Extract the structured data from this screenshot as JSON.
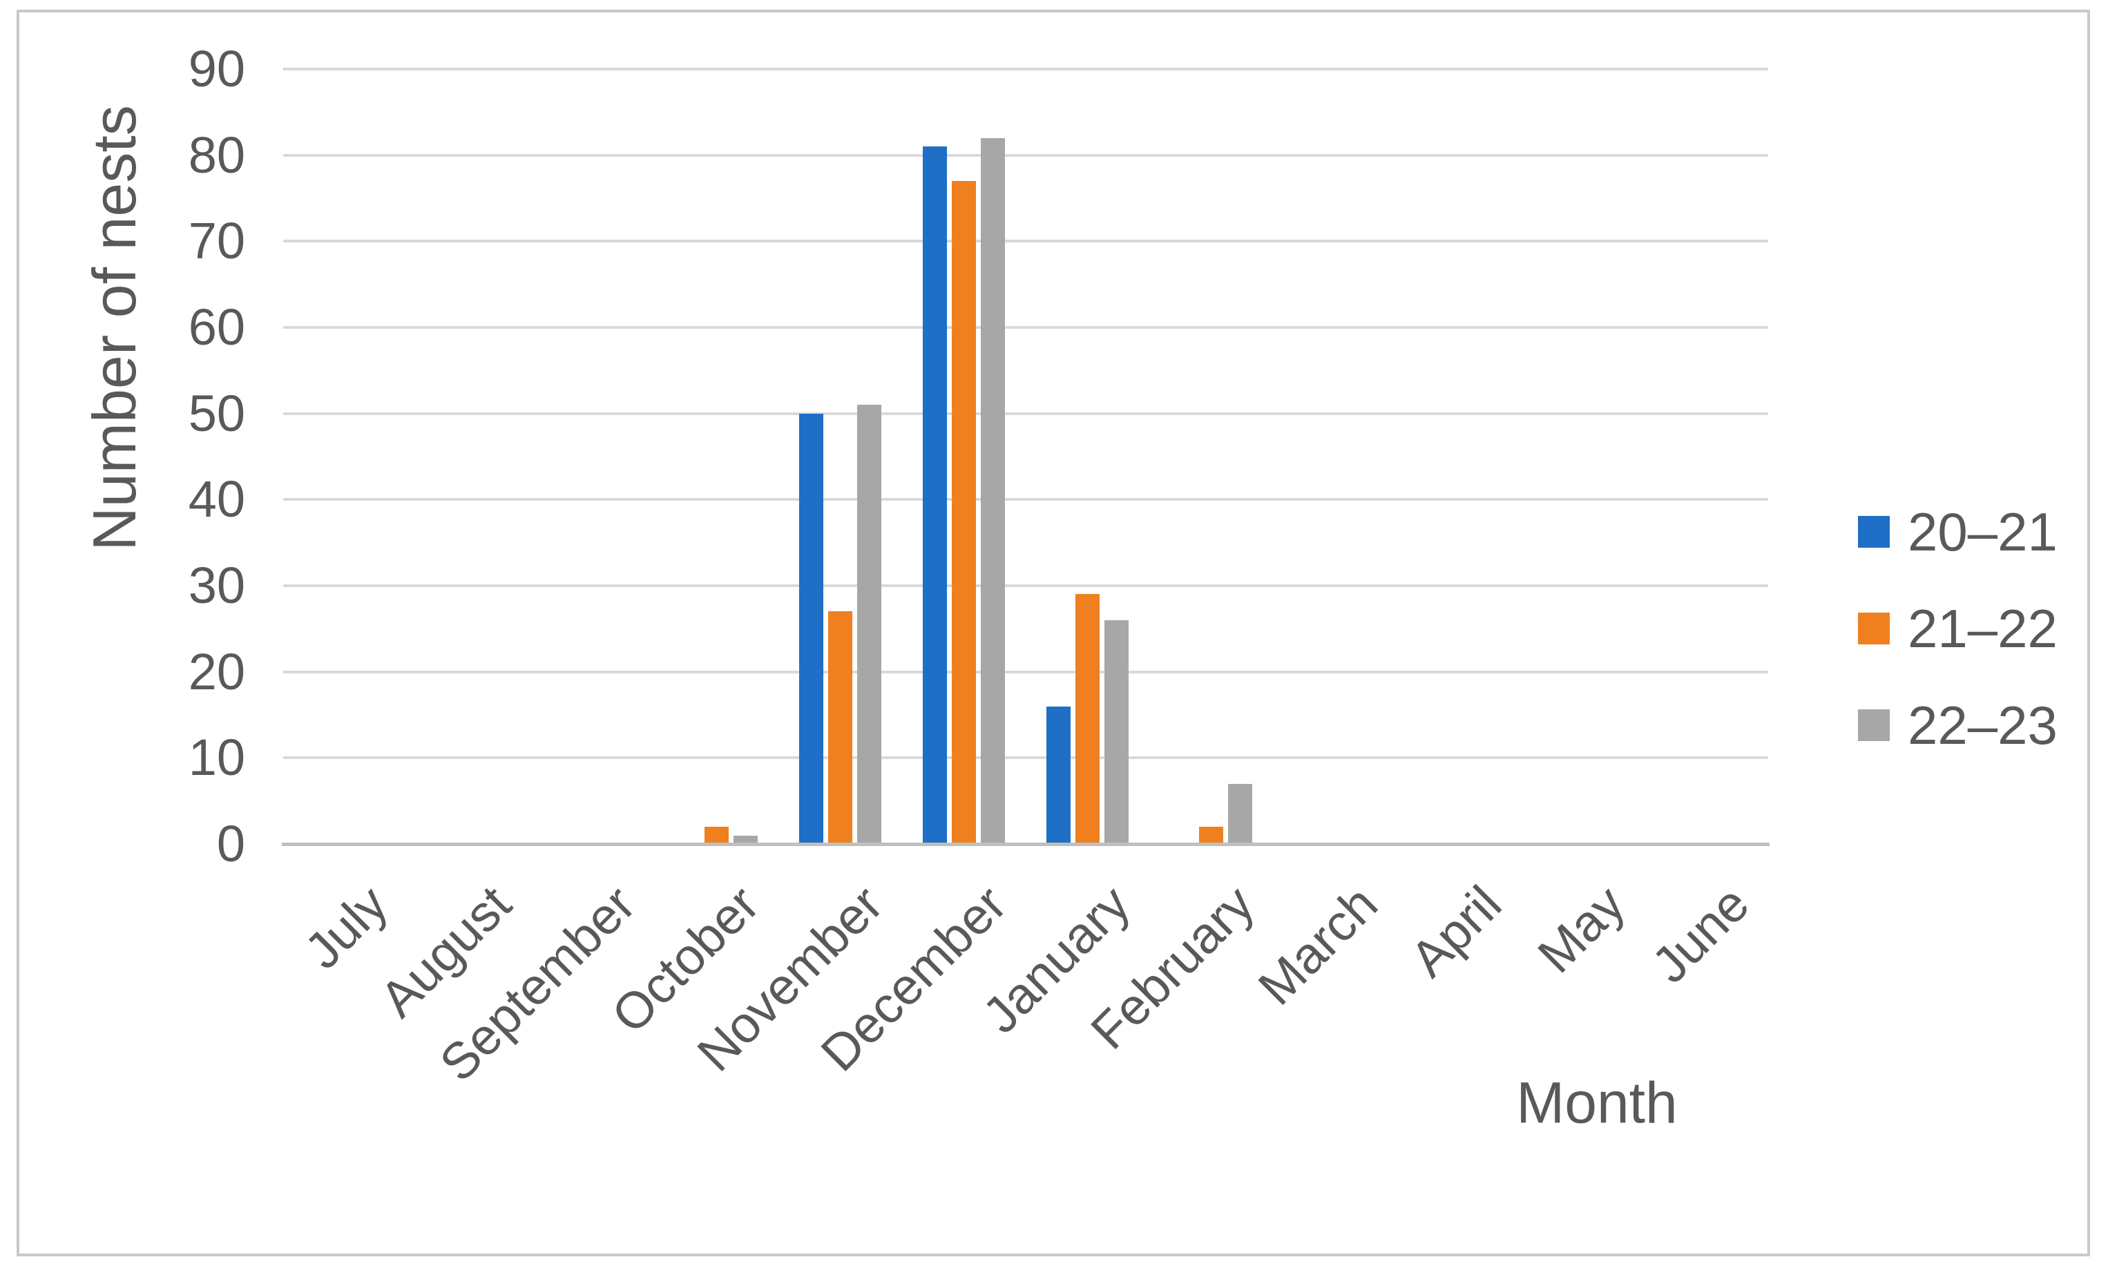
{
  "figure": {
    "border_color": "#C9C9C9",
    "background": "#FFFFFF"
  },
  "chart_data": {
    "type": "bar",
    "title": "",
    "ylabel": "Number of nests",
    "xlabel": "Month",
    "categories": [
      "July",
      "August",
      "September",
      "October",
      "November",
      "December",
      "January",
      "February",
      "March",
      "April",
      "May",
      "June"
    ],
    "series": [
      {
        "name": "20–21",
        "color": "#1E6FC5",
        "values": [
          0,
          0,
          0,
          0,
          50,
          81,
          16,
          0,
          0,
          0,
          0,
          0
        ]
      },
      {
        "name": "21–22",
        "color": "#F0801F",
        "values": [
          0,
          0,
          0,
          2,
          27,
          77,
          29,
          2,
          0,
          0,
          0,
          0
        ]
      },
      {
        "name": "22–23",
        "color": "#A7A7A7",
        "values": [
          0,
          0,
          0,
          1,
          51,
          82,
          26,
          7,
          0,
          0,
          0,
          0
        ]
      }
    ],
    "ylim": [
      0,
      90
    ],
    "yticks": [
      0,
      10,
      20,
      30,
      40,
      50,
      60,
      70,
      80,
      90
    ],
    "grid": "horizontal",
    "legend_position": "right",
    "x_tick_rotation_deg": 45
  },
  "style": {
    "text_color": "#595959",
    "gridline_color": "#D9D9D9",
    "axis_line_color": "#BFBFBF",
    "plot_background": "#FFFFFF"
  }
}
